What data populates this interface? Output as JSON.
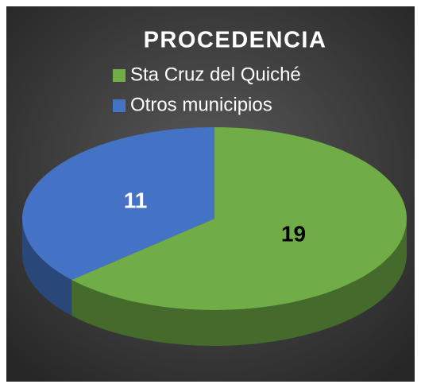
{
  "chart_data": {
    "type": "pie",
    "title": "PROCEDENCIA",
    "categories": [
      "Sta Cruz del Quiché",
      "Otros municipios"
    ],
    "values": [
      19,
      11
    ],
    "colors": [
      "#70ad47",
      "#4472c4"
    ]
  }
}
